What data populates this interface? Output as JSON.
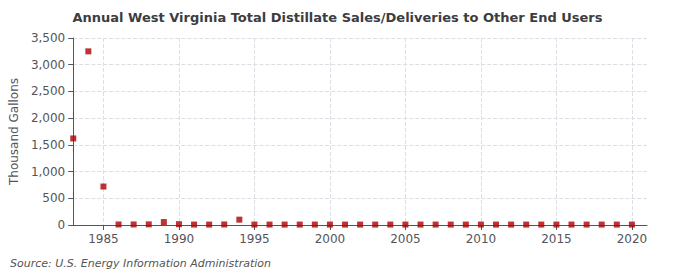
{
  "chart_data": {
    "type": "scatter",
    "title": "Annual West Virginia Total Distillate Sales/Deliveries to Other End Users",
    "ylabel": "Thousand Gallons",
    "annotation": "Source: U.S. Energy Information Administration",
    "color": "#aa0000",
    "marker": "square",
    "grid": true,
    "xlim": [
      1983,
      2021
    ],
    "xticks": [
      1985,
      1990,
      1995,
      2000,
      2005,
      2010,
      2015,
      2020
    ],
    "ylim": [
      0,
      3500
    ],
    "yticks": [
      0,
      500,
      {
        "value": 1000,
        "label": "1,000"
      },
      {
        "value": 1500,
        "label": "1,500"
      },
      {
        "value": 2000,
        "label": "2,000"
      },
      {
        "value": 2500,
        "label": "2,500"
      },
      {
        "value": 3000,
        "label": "3,000"
      },
      {
        "value": 3500,
        "label": "3,500"
      }
    ],
    "x": [
      1983,
      1984,
      1985,
      1986,
      1987,
      1988,
      1989,
      1990,
      1991,
      1992,
      1993,
      1994,
      1995,
      1996,
      1997,
      1998,
      1999,
      2000,
      2001,
      2002,
      2003,
      2004,
      2005,
      2006,
      2007,
      2008,
      2009,
      2010,
      2011,
      2012,
      2013,
      2014,
      2015,
      2016,
      2017,
      2018,
      2019,
      2020
    ],
    "values": [
      1620,
      3250,
      720,
      10,
      10,
      12,
      55,
      15,
      8,
      8,
      10,
      100,
      8,
      8,
      8,
      8,
      8,
      8,
      8,
      8,
      8,
      8,
      8,
      8,
      8,
      8,
      8,
      8,
      8,
      8,
      8,
      8,
      8,
      8,
      8,
      8,
      8,
      8
    ]
  }
}
